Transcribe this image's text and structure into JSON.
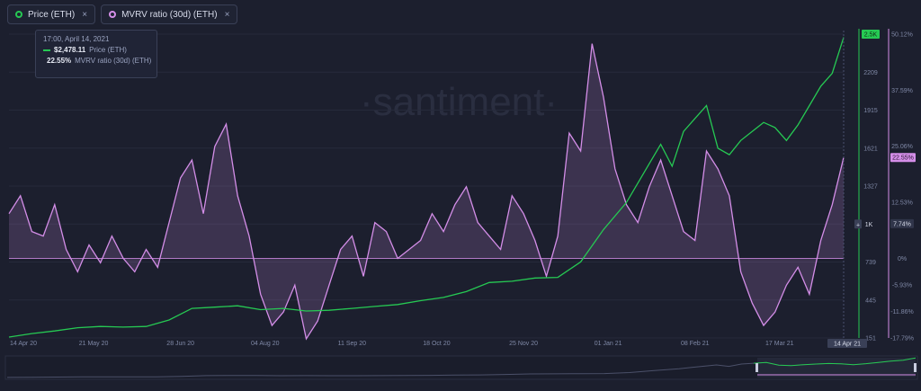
{
  "legend": [
    {
      "label": "Price (ETH)",
      "color": "#26c953"
    },
    {
      "label": "MVRV ratio (30d) (ETH)",
      "color": "#d48ee8"
    }
  ],
  "close_glyph": "×",
  "watermark": "·santiment·",
  "tooltip": {
    "date": "17:00, April 14, 2021",
    "price_value": "$2,478.11",
    "price_label": "Price (ETH)",
    "mvrv_value": "22.55%",
    "mvrv_label": "MVRV ratio (30d) (ETH)"
  },
  "chart_data": {
    "type": "line",
    "x_ticks": [
      "14 Apr 20",
      "21 May 20",
      "28 Jun 20",
      "04 Aug 20",
      "11 Sep 20",
      "18 Oct 20",
      "25 Nov 20",
      "01 Jan 21",
      "08 Feb 21",
      "17 Mar 21"
    ],
    "x_last_label": "14 Apr 21",
    "price_ticks": [
      "151",
      "445",
      "739",
      "1K",
      "1327",
      "1621",
      "1915",
      "2209",
      "2.5K"
    ],
    "price_ylim": [
      151,
      2503
    ],
    "mvrv_ticks": [
      "-17.79%",
      "-11.86%",
      "-5.93%",
      "0%",
      "7.74%",
      "12.53%",
      "22.55%",
      "25.06%",
      "37.59%",
      "50.12%"
    ],
    "mvrv_ylim": [
      -17.79,
      50.12
    ],
    "series": [
      {
        "name": "Price (ETH)",
        "color": "#26c953",
        "x_days": [
          0,
          10,
          20,
          30,
          40,
          50,
          60,
          70,
          80,
          90,
          100,
          110,
          120,
          130,
          140,
          150,
          160,
          170,
          180,
          190,
          200,
          210,
          220,
          230,
          240,
          250,
          260,
          270,
          275,
          280,
          285,
          290,
          295,
          300,
          305,
          310,
          315,
          320,
          325,
          330,
          335,
          340,
          345,
          350,
          355,
          360,
          365
        ],
        "values": [
          158,
          185,
          205,
          230,
          240,
          235,
          240,
          290,
          380,
          390,
          400,
          370,
          380,
          360,
          365,
          380,
          395,
          410,
          440,
          465,
          510,
          580,
          590,
          615,
          620,
          740,
          990,
          1200,
          1350,
          1500,
          1650,
          1480,
          1750,
          1850,
          1950,
          1620,
          1570,
          1680,
          1750,
          1820,
          1780,
          1680,
          1800,
          1950,
          2100,
          2200,
          2478
        ]
      },
      {
        "name": "MVRV ratio (30d) (ETH)",
        "color": "#d48ee8",
        "x_days": [
          0,
          5,
          10,
          15,
          20,
          25,
          30,
          35,
          40,
          45,
          50,
          55,
          60,
          65,
          70,
          75,
          80,
          85,
          90,
          95,
          100,
          105,
          110,
          115,
          120,
          125,
          130,
          135,
          140,
          145,
          150,
          155,
          160,
          165,
          170,
          175,
          180,
          185,
          190,
          195,
          200,
          205,
          210,
          215,
          220,
          225,
          230,
          235,
          240,
          245,
          250,
          255,
          260,
          265,
          270,
          275,
          280,
          285,
          290,
          295,
          300,
          305,
          310,
          315,
          320,
          325,
          330,
          335,
          340,
          345,
          350,
          355,
          360,
          365
        ],
        "values": [
          10,
          14,
          6,
          5,
          12,
          2,
          -3,
          3,
          -1,
          5,
          0,
          -3,
          2,
          -2,
          8,
          18,
          22,
          10,
          25,
          30,
          14,
          5,
          -8,
          -15,
          -12,
          -6,
          -18,
          -14,
          -6,
          2,
          5,
          -4,
          8,
          6,
          0,
          2,
          4,
          10,
          6,
          12,
          16,
          8,
          5,
          2,
          14,
          10,
          4,
          -4,
          5,
          28,
          24,
          48,
          36,
          20,
          12,
          8,
          16,
          22,
          14,
          6,
          4,
          24,
          20,
          14,
          -3,
          -10,
          -15,
          -12,
          -6,
          -2,
          -8,
          4,
          12,
          22.55
        ]
      }
    ]
  }
}
